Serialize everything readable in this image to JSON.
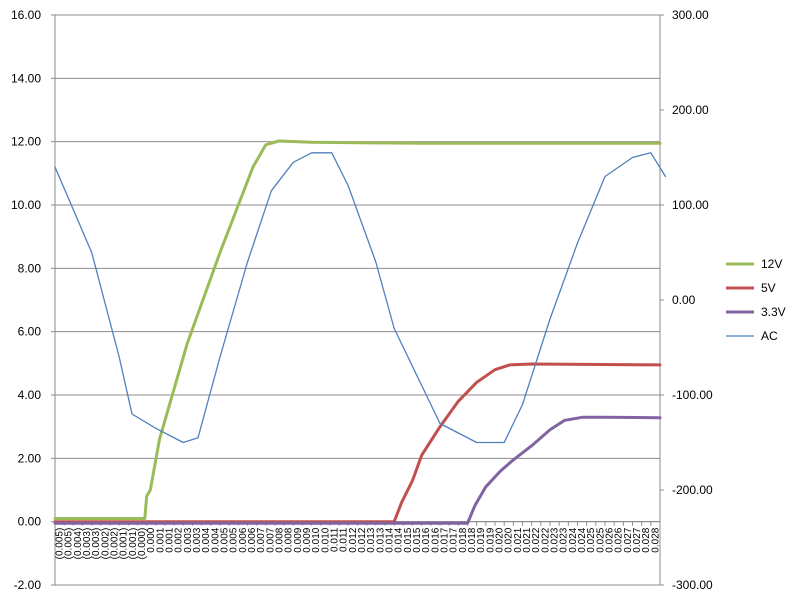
{
  "chart_data": {
    "type": "line",
    "title": "",
    "xlabel": "",
    "ylabel": "",
    "y_left": {
      "range": [
        -2,
        16
      ],
      "ticks": [
        "-2.00",
        "0.00",
        "2.00",
        "4.00",
        "6.00",
        "8.00",
        "10.00",
        "12.00",
        "14.00",
        "16.00"
      ]
    },
    "y_right": {
      "range": [
        -300,
        300
      ],
      "ticks": [
        "-300.00",
        "-200.00",
        "-100.00",
        "0.00",
        "100.00",
        "200.00",
        "300.00"
      ]
    },
    "x": {
      "range": [
        -0.005,
        0.028
      ],
      "tick_labels": [
        "(0.005)",
        "(0.005)",
        "(0.004)",
        "(0.003)",
        "(0.003)",
        "(0.002)",
        "(0.002)",
        "(0.001)",
        "(0.001)",
        "(0.000)",
        "0.000",
        "0.001",
        "0.001",
        "0.002",
        "0.003",
        "0.003",
        "0.004",
        "0.004",
        "0.005",
        "0.005",
        "0.006",
        "0.006",
        "0.007",
        "0.007",
        "0.008",
        "0.008",
        "0.009",
        "0.009",
        "0.010",
        "0.010",
        "0.011",
        "0.011",
        "0.012",
        "0.012",
        "0.013",
        "0.013",
        "0.014",
        "0.014",
        "0.015",
        "0.015",
        "0.016",
        "0.016",
        "0.017",
        "0.017",
        "0.018",
        "0.018",
        "0.019",
        "0.019",
        "0.020",
        "0.020",
        "0.021",
        "0.021",
        "0.022",
        "0.022",
        "0.023",
        "0.023",
        "0.024",
        "0.024",
        "0.025",
        "0.025",
        "0.026",
        "0.026",
        "0.027",
        "0.027",
        "0.028",
        "0.028"
      ]
    },
    "grid": "horizontal",
    "legend": "right",
    "series": [
      {
        "name": "12V",
        "axis": "left",
        "color": "#9bbb59",
        "points": [
          [
            -0.005,
            0.1
          ],
          [
            -0.0001,
            0.1
          ],
          [
            0.0,
            0.8
          ],
          [
            0.0002,
            1.0
          ],
          [
            0.0007,
            2.6
          ],
          [
            0.0022,
            5.6
          ],
          [
            0.004,
            8.5
          ],
          [
            0.0058,
            11.2
          ],
          [
            0.0065,
            11.9
          ],
          [
            0.0072,
            12.02
          ],
          [
            0.009,
            11.98
          ],
          [
            0.015,
            11.95
          ],
          [
            0.028,
            11.95
          ]
        ]
      },
      {
        "name": "5V",
        "axis": "left",
        "color": "#c0504d",
        "points": [
          [
            -0.005,
            0.0
          ],
          [
            0.0135,
            0.0
          ],
          [
            0.0139,
            0.6
          ],
          [
            0.0145,
            1.3
          ],
          [
            0.015,
            2.1
          ],
          [
            0.016,
            3.0
          ],
          [
            0.017,
            3.8
          ],
          [
            0.018,
            4.4
          ],
          [
            0.019,
            4.8
          ],
          [
            0.0198,
            4.95
          ],
          [
            0.021,
            4.98
          ],
          [
            0.028,
            4.95
          ]
        ]
      },
      {
        "name": "3.3V",
        "axis": "left",
        "color": "#8064a2",
        "points": [
          [
            -0.005,
            -0.05
          ],
          [
            0.0175,
            -0.05
          ],
          [
            0.0179,
            0.5
          ],
          [
            0.0185,
            1.1
          ],
          [
            0.0193,
            1.6
          ],
          [
            0.02,
            1.95
          ],
          [
            0.021,
            2.4
          ],
          [
            0.022,
            2.9
          ],
          [
            0.0228,
            3.2
          ],
          [
            0.0238,
            3.3
          ],
          [
            0.025,
            3.3
          ],
          [
            0.028,
            3.28
          ]
        ]
      },
      {
        "name": "AC",
        "axis": "right",
        "color": "#4f81bd",
        "points": [
          [
            -0.005,
            140
          ],
          [
            -0.003,
            50
          ],
          [
            -0.0015,
            -60
          ],
          [
            -0.0008,
            -120
          ],
          [
            0.0005,
            -135
          ],
          [
            0.002,
            -150
          ],
          [
            0.0028,
            -145
          ],
          [
            0.004,
            -60
          ],
          [
            0.0055,
            40
          ],
          [
            0.0068,
            115
          ],
          [
            0.008,
            145
          ],
          [
            0.009,
            155
          ],
          [
            0.0101,
            155
          ],
          [
            0.011,
            120
          ],
          [
            0.0125,
            40
          ],
          [
            0.0135,
            -30
          ],
          [
            0.015,
            -90
          ],
          [
            0.016,
            -130
          ],
          [
            0.017,
            -140
          ],
          [
            0.018,
            -150
          ],
          [
            0.0195,
            -150
          ],
          [
            0.0205,
            -110
          ],
          [
            0.022,
            -20
          ],
          [
            0.0235,
            60
          ],
          [
            0.025,
            130
          ],
          [
            0.0265,
            150
          ],
          [
            0.0275,
            155
          ],
          [
            0.0283,
            130
          ]
        ]
      }
    ]
  }
}
